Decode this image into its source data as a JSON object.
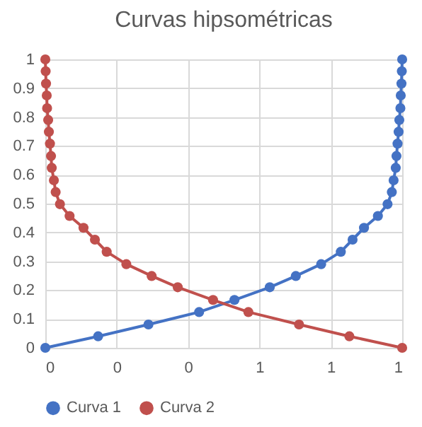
{
  "chart_data": {
    "type": "line",
    "title": "Curvas hipsométricas",
    "xlim": [
      0,
      1
    ],
    "xticks": [
      0,
      {
        "value": 0.2,
        "label": "0"
      },
      {
        "value": 0.4,
        "label": "0"
      },
      {
        "value": 0.6,
        "label": "1"
      },
      {
        "value": 0.8,
        "label": "1"
      },
      1
    ],
    "ylim": [
      0,
      1
    ],
    "yticks": [
      0,
      0.1,
      0.2,
      0.3,
      0.4,
      0.5,
      0.6,
      0.7,
      0.8,
      0.9,
      1
    ],
    "grid": true,
    "legend": "bottom",
    "marker": "circle",
    "line_style": "solid",
    "series": [
      {
        "name": "Curva 1",
        "color": "#4472c4",
        "x": [
          0,
          0.148,
          0.289,
          0.431,
          0.53,
          0.629,
          0.702,
          0.773,
          0.828,
          0.861,
          0.893,
          0.932,
          0.959,
          0.971,
          0.976,
          0.982,
          0.984,
          0.987,
          0.99,
          0.992,
          0.995,
          0.996,
          0.998,
          0.999,
          1
        ],
        "values": [
          0,
          0.04,
          0.081,
          0.124,
          0.166,
          0.21,
          0.249,
          0.29,
          0.333,
          0.375,
          0.416,
          0.457,
          0.498,
          0.54,
          0.581,
          0.624,
          0.665,
          0.708,
          0.749,
          0.79,
          0.831,
          0.875,
          0.916,
          0.959,
          1
        ]
      },
      {
        "name": "Curva 2",
        "color": "#c0504d",
        "x": [
          1,
          0.852,
          0.711,
          0.569,
          0.47,
          0.371,
          0.298,
          0.227,
          0.172,
          0.139,
          0.107,
          0.068,
          0.041,
          0.029,
          0.024,
          0.018,
          0.016,
          0.013,
          0.01,
          0.008,
          0.005,
          0.004,
          0.002,
          0.001,
          0
        ],
        "values": [
          0,
          0.04,
          0.081,
          0.124,
          0.166,
          0.21,
          0.249,
          0.29,
          0.333,
          0.375,
          0.416,
          0.457,
          0.498,
          0.54,
          0.581,
          0.624,
          0.665,
          0.708,
          0.749,
          0.79,
          0.831,
          0.875,
          0.916,
          0.959,
          1
        ]
      }
    ]
  }
}
